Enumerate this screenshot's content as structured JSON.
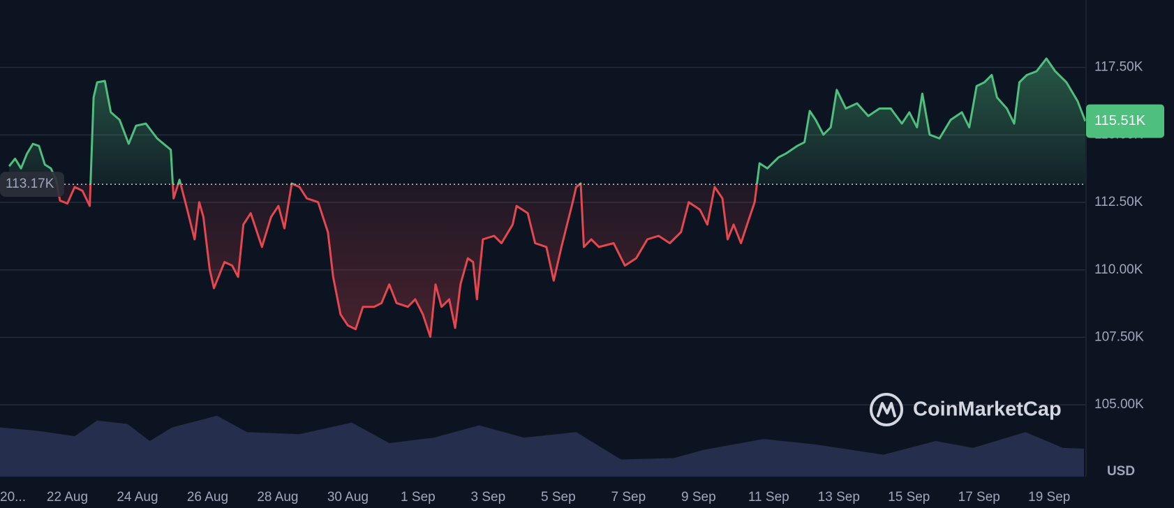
{
  "chart_data": {
    "type": "line",
    "watermark": "CoinMarketCap",
    "currency": "USD",
    "up_color": "#4fbf7d",
    "down_color": "#e5474f",
    "volume_color": "#2a3254",
    "grid": true,
    "xlim": [
      0.08,
      31.03
    ],
    "ylim": [
      102.34,
      120
    ],
    "xticks": [
      {
        "value": 0,
        "label": "20..."
      },
      {
        "value": 2,
        "label": "22 Aug"
      },
      {
        "value": 4,
        "label": "24 Aug"
      },
      {
        "value": 6,
        "label": "26 Aug"
      },
      {
        "value": 8,
        "label": "28 Aug"
      },
      {
        "value": 10,
        "label": "30 Aug"
      },
      {
        "value": 12,
        "label": "1 Sep"
      },
      {
        "value": 14,
        "label": "3 Sep"
      },
      {
        "value": 16,
        "label": "5 Sep"
      },
      {
        "value": 18,
        "label": "7 Sep"
      },
      {
        "value": 20,
        "label": "9 Sep"
      },
      {
        "value": 22,
        "label": "11 Sep"
      },
      {
        "value": 24,
        "label": "13 Sep"
      },
      {
        "value": 26,
        "label": "15 Sep"
      },
      {
        "value": 28,
        "label": "17 Sep"
      },
      {
        "value": 30,
        "label": "19 Sep"
      }
    ],
    "yticks": [
      {
        "value": 105,
        "label": "105.00K"
      },
      {
        "value": 107.5,
        "label": "107.50K"
      },
      {
        "value": 110,
        "label": "110.00K"
      },
      {
        "value": 112.5,
        "label": "112.50K"
      },
      {
        "value": 115,
        "label": "115.00K"
      },
      {
        "value": 117.5,
        "label": "117.50K"
      }
    ],
    "baseline": {
      "value": 113.17,
      "label": "113.17K"
    },
    "last_price": {
      "value": 115.51,
      "label": "115.51K"
    },
    "x": [
      0.34,
      0.51,
      0.68,
      0.85,
      1.02,
      1.19,
      1.36,
      1.53,
      1.68,
      1.79,
      2.0,
      2.21,
      2.43,
      2.64,
      2.75,
      2.85,
      3.07,
      3.24,
      3.49,
      3.75,
      3.96,
      4.24,
      4.56,
      4.82,
      4.95,
      5.03,
      5.2,
      5.42,
      5.63,
      5.76,
      5.88,
      6.06,
      6.18,
      6.48,
      6.7,
      6.87,
      7.02,
      7.23,
      7.55,
      7.81,
      8.02,
      8.19,
      8.4,
      8.62,
      8.83,
      9.15,
      9.43,
      9.58,
      9.79,
      10.0,
      10.22,
      10.43,
      10.75,
      10.96,
      11.18,
      11.39,
      11.71,
      11.92,
      12.14,
      12.35,
      12.5,
      12.67,
      12.89,
      13.06,
      13.21,
      13.42,
      13.57,
      13.68,
      13.85,
      14.17,
      14.38,
      14.7,
      14.81,
      15.13,
      15.34,
      15.66,
      15.87,
      16.09,
      16.41,
      16.51,
      16.64,
      16.73,
      16.94,
      17.16,
      17.58,
      17.9,
      18.22,
      18.54,
      18.86,
      19.18,
      19.5,
      19.72,
      20.04,
      20.25,
      20.46,
      20.68,
      20.83,
      21.0,
      21.21,
      21.42,
      21.6,
      21.74,
      21.96,
      22.28,
      22.49,
      22.81,
      23.02,
      23.17,
      23.34,
      23.56,
      23.77,
      23.94,
      24.2,
      24.52,
      24.84,
      25.16,
      25.48,
      25.8,
      26.01,
      26.23,
      26.38,
      26.59,
      26.87,
      27.19,
      27.51,
      27.72,
      27.93,
      28.15,
      28.36,
      28.51,
      28.79,
      29.0,
      29.15,
      29.36,
      29.64,
      29.92,
      30.17,
      30.49,
      30.81,
      31.03
    ],
    "series": [
      {
        "name": "Price",
        "values": [
          113.84,
          114.12,
          113.76,
          114.31,
          114.67,
          114.59,
          113.9,
          113.76,
          113.34,
          112.57,
          112.46,
          113.07,
          112.93,
          112.37,
          116.39,
          116.95,
          117.0,
          115.84,
          115.56,
          114.67,
          115.34,
          115.42,
          114.87,
          114.59,
          114.45,
          112.65,
          113.34,
          112.23,
          111.13,
          112.51,
          111.96,
          110.02,
          109.32,
          110.29,
          110.16,
          109.74,
          111.68,
          112.1,
          110.85,
          111.96,
          112.37,
          111.54,
          113.2,
          113.07,
          112.65,
          112.51,
          111.4,
          109.74,
          108.35,
          107.94,
          107.8,
          108.63,
          108.63,
          108.77,
          109.46,
          108.77,
          108.63,
          108.91,
          108.35,
          107.52,
          109.46,
          108.63,
          108.91,
          107.85,
          109.46,
          110.43,
          110.29,
          108.91,
          111.13,
          111.26,
          110.99,
          111.68,
          112.37,
          112.1,
          110.99,
          110.85,
          109.6,
          110.85,
          112.51,
          113.07,
          113.2,
          110.85,
          111.13,
          110.85,
          110.99,
          110.16,
          110.43,
          111.13,
          111.26,
          110.99,
          111.4,
          112.51,
          112.23,
          111.68,
          113.07,
          112.65,
          111.13,
          111.68,
          110.99,
          111.82,
          112.51,
          113.95,
          113.76,
          114.17,
          114.31,
          114.59,
          114.73,
          115.89,
          115.56,
          115.01,
          115.28,
          116.67,
          115.98,
          116.17,
          115.7,
          115.98,
          115.98,
          115.42,
          115.84,
          115.28,
          116.53,
          115.01,
          114.87,
          115.56,
          115.84,
          115.28,
          116.81,
          116.95,
          117.22,
          116.39,
          115.98,
          115.42,
          116.95,
          117.22,
          117.36,
          117.83,
          117.36,
          116.95,
          116.25,
          115.51
        ]
      }
    ],
    "volume": {
      "ylim": [
        0,
        100
      ],
      "x": [
        0.08,
        1.15,
        2.21,
        2.85,
        3.71,
        4.35,
        4.99,
        6.27,
        7.12,
        8.62,
        10.11,
        11.18,
        12.46,
        13.74,
        15.02,
        16.51,
        17.79,
        19.29,
        20.14,
        21.85,
        23.34,
        25.27,
        26.76,
        27.83,
        29.32,
        30.39,
        30.99
      ],
      "values": [
        72,
        67,
        59,
        82,
        77,
        52,
        72,
        89,
        65,
        62,
        79,
        49,
        57,
        75,
        57,
        65,
        25,
        27,
        39,
        55,
        47,
        32,
        52,
        42,
        65,
        42,
        41
      ]
    }
  }
}
